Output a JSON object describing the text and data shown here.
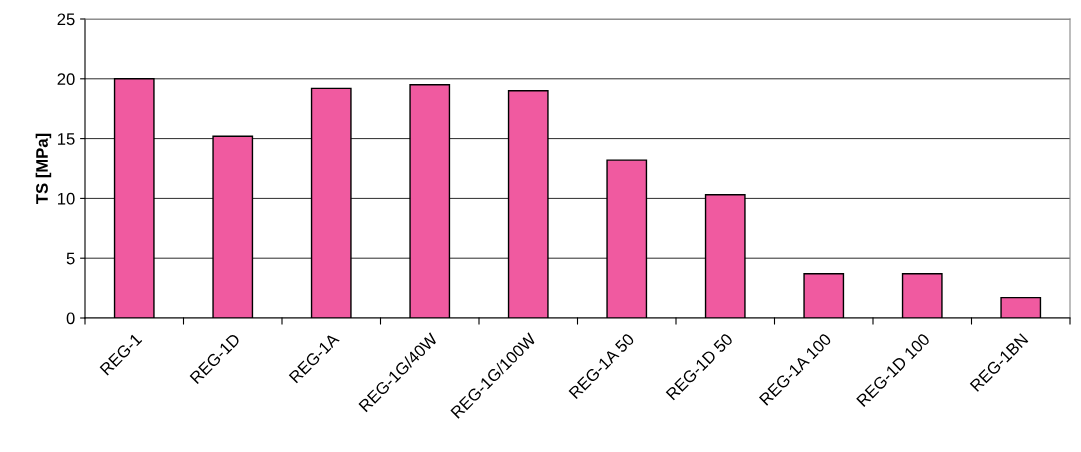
{
  "chart_data": {
    "type": "bar",
    "ylabel": "TS [MPa]",
    "categories": [
      "REG-1",
      "REG-1D",
      "REG-1A",
      "REG-1G/40W",
      "REG-1G/100W",
      "REG-1A 50",
      "REG-1D 50",
      "REG-1A 100",
      "REG-1D 100",
      "REG-1BN"
    ],
    "values": [
      20.0,
      15.2,
      19.2,
      19.5,
      19.0,
      13.2,
      10.3,
      3.7,
      3.7,
      1.7
    ],
    "color": "#f05aa0",
    "ylim": [
      0,
      25
    ],
    "yticks": [
      0,
      5,
      10,
      15,
      20,
      25
    ],
    "grid": "y"
  }
}
